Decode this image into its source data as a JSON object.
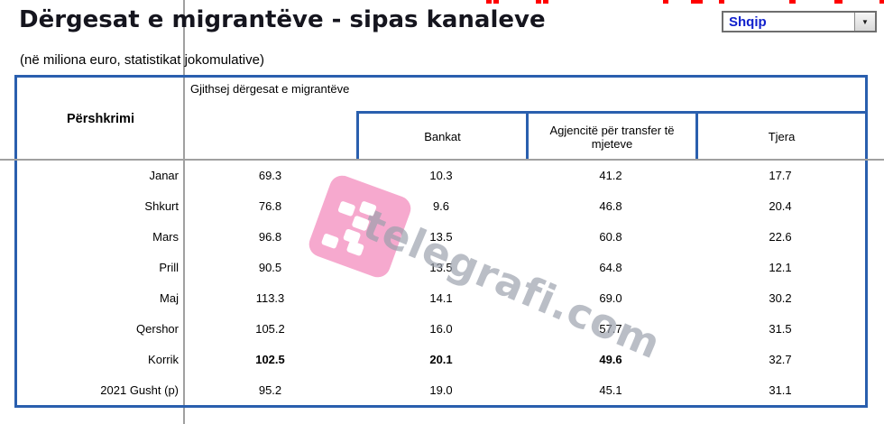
{
  "header": {
    "title": "Dërgesat e migrantëve - sipas kanaleve",
    "subtitle": "(në miliona euro, statistikat jokomulative)"
  },
  "language_selector": {
    "selected": "Shqip"
  },
  "icons": {
    "dropdown_arrow": "▼"
  },
  "table": {
    "description_header": "Përshkrimi",
    "group_header": "Gjithsej dërgesat e migrantëve",
    "sub_headers": [
      "Bankat",
      "Agjencitë për transfer të mjeteve",
      "Tjera"
    ],
    "rows": [
      {
        "label": "Janar",
        "total": "69.3",
        "banks": "10.3",
        "agencies": "41.2",
        "other": "17.7",
        "bold_values": false
      },
      {
        "label": "Shkurt",
        "total": "76.8",
        "banks": "9.6",
        "agencies": "46.8",
        "other": "20.4",
        "bold_values": false
      },
      {
        "label": "Mars",
        "total": "96.8",
        "banks": "13.5",
        "agencies": "60.8",
        "other": "22.6",
        "bold_values": false
      },
      {
        "label": "Prill",
        "total": "90.5",
        "banks": "13.5",
        "agencies": "64.8",
        "other": "12.1",
        "bold_values": false
      },
      {
        "label": "Maj",
        "total": "113.3",
        "banks": "14.1",
        "agencies": "69.0",
        "other": "30.2",
        "bold_values": false
      },
      {
        "label": "Qershor",
        "total": "105.2",
        "banks": "16.0",
        "agencies": "57.7",
        "other": "31.5",
        "bold_values": false
      },
      {
        "label": "Korrik",
        "total": "102.5",
        "banks": "20.1",
        "agencies": "49.6",
        "other": "32.7",
        "bold_values": true
      },
      {
        "label": "2021 Gusht (p)",
        "total": "95.2",
        "banks": "19.0",
        "agencies": "45.1",
        "other": "31.1",
        "bold_values": false
      }
    ]
  },
  "watermark": {
    "text": "telegrafi.com"
  },
  "colors": {
    "title": "#15151e",
    "table_border": "#2a5fae",
    "gridline": "#a0a0a0",
    "dropdown_text": "#1020cc",
    "accent_red": "#ff0000",
    "watermark_pink": "#f6a9ce",
    "watermark_text": "#9aa0ac"
  }
}
